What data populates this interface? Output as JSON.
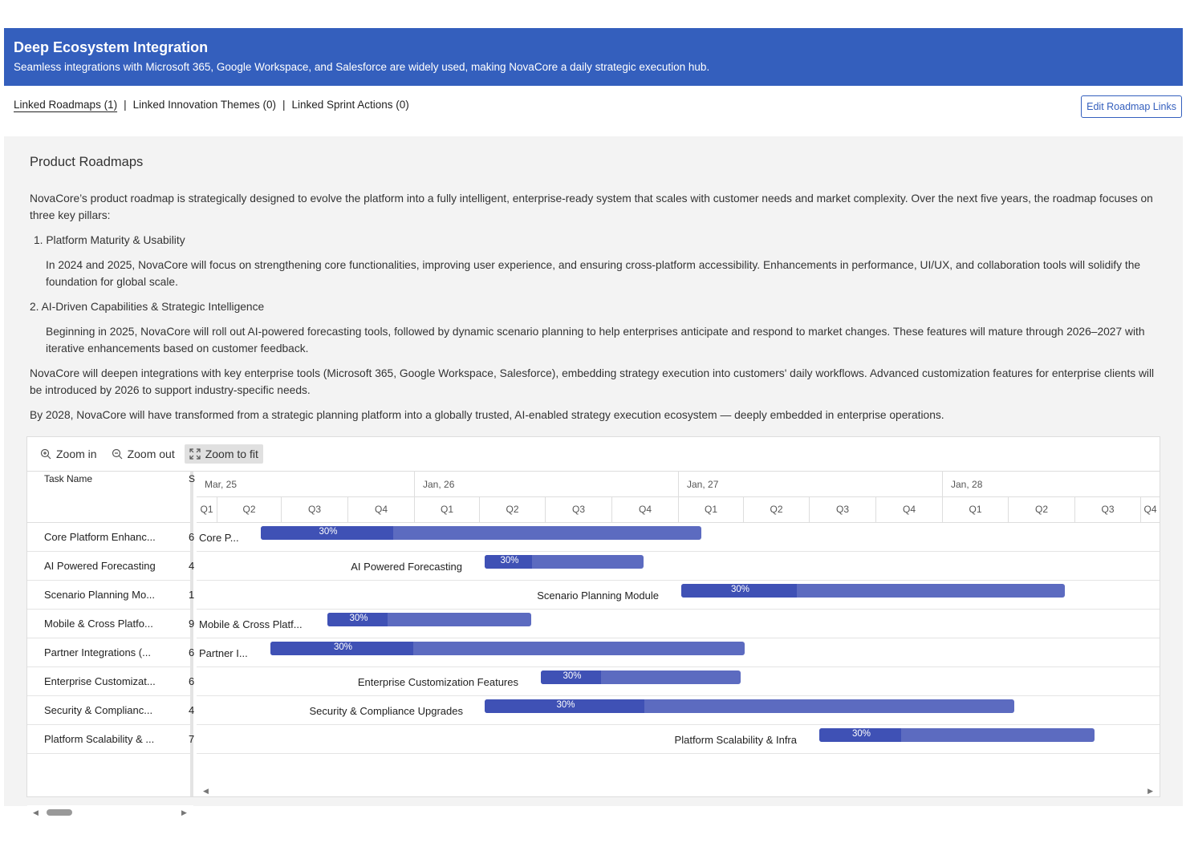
{
  "banner": {
    "title": "Deep Ecosystem Integration",
    "subtitle": "Seamless integrations with Microsoft 365, Google Workspace, and Salesforce are widely used, making NovaCore a daily strategic execution hub."
  },
  "links": {
    "roadmaps": "Linked Roadmaps (1)",
    "sep": "|",
    "themes": "Linked Innovation Themes (0)",
    "sprints": "Linked Sprint Actions (0)",
    "edit": "Edit Roadmap Links"
  },
  "section": {
    "title": "Product Roadmaps",
    "intro": "NovaCore’s product roadmap is strategically designed to evolve the platform into a fully intelligent, enterprise-ready system that scales with customer needs and market complexity. Over the next five years, the roadmap focuses on three key pillars:",
    "p1_title": "1. Platform Maturity & Usability",
    "p1_body": "In 2024 and 2025, NovaCore will focus on strengthening core functionalities, improving user experience, and ensuring cross-platform accessibility. Enhancements in performance, UI/UX, and collaboration tools will solidify the foundation for global scale.",
    "p2_title": "2. AI-Driven Capabilities & Strategic Intelligence",
    "p2_body": "Beginning in 2025, NovaCore will roll out AI-powered forecasting tools, followed by dynamic scenario planning to help enterprises anticipate and respond to market changes. These features will mature through 2026–2027 with iterative enhancements based on customer feedback.",
    "p3": "NovaCore will deepen integrations with key enterprise tools (Microsoft 365, Google Workspace, Salesforce), embedding strategy execution into customers' daily workflows. Advanced customization features for enterprise clients will be introduced by 2026 to support industry-specific needs.",
    "p4": "By 2028, NovaCore will have transformed from a strategic planning platform into a globally trusted, AI-enabled strategy execution ecosystem — deeply embedded in enterprise operations."
  },
  "gantt": {
    "toolbar": {
      "zoom_in": "Zoom in",
      "zoom_out": "Zoom out",
      "zoom_fit": "Zoom to fit"
    },
    "columns": {
      "task": "Task Name",
      "second": "S"
    },
    "years": [
      "Mar, 25",
      "Jan, 26",
      "Jan, 27",
      "Jan, 28"
    ],
    "quarters": [
      "Q1",
      "Q2",
      "Q3",
      "Q4",
      "Q1",
      "Q2",
      "Q3",
      "Q4",
      "Q1",
      "Q2",
      "Q3",
      "Q4",
      "Q1",
      "Q2",
      "Q3",
      "Q4"
    ],
    "colors": {
      "bar": "#5c6bc0",
      "progress": "#3f51b5",
      "header": "#345fbd"
    },
    "tasks": [
      {
        "grid_name": "Core Platform Enhanc...",
        "col2": "6",
        "bar_label": "Core P...",
        "progress": "30%"
      },
      {
        "grid_name": "AI Powered Forecasting",
        "col2": "4",
        "bar_label": "AI Powered Forecasting",
        "progress": "30%"
      },
      {
        "grid_name": "Scenario Planning Mo...",
        "col2": "1",
        "bar_label": "Scenario Planning Module",
        "progress": "30%"
      },
      {
        "grid_name": "Mobile & Cross Platfo...",
        "col2": "9",
        "bar_label": "Mobile & Cross Platf...",
        "progress": "30%"
      },
      {
        "grid_name": "Partner Integrations (...",
        "col2": "6",
        "bar_label": "Partner I...",
        "progress": "30%"
      },
      {
        "grid_name": "Enterprise Customizat...",
        "col2": "6",
        "bar_label": "Enterprise Customization Features",
        "progress": "30%"
      },
      {
        "grid_name": "Security & Complianc...",
        "col2": "4",
        "bar_label": "Security & Compliance Upgrades",
        "progress": "30%"
      },
      {
        "grid_name": "Platform Scalability & ...",
        "col2": "7",
        "bar_label": "Platform Scalability & Infra",
        "progress": "30%"
      }
    ]
  }
}
